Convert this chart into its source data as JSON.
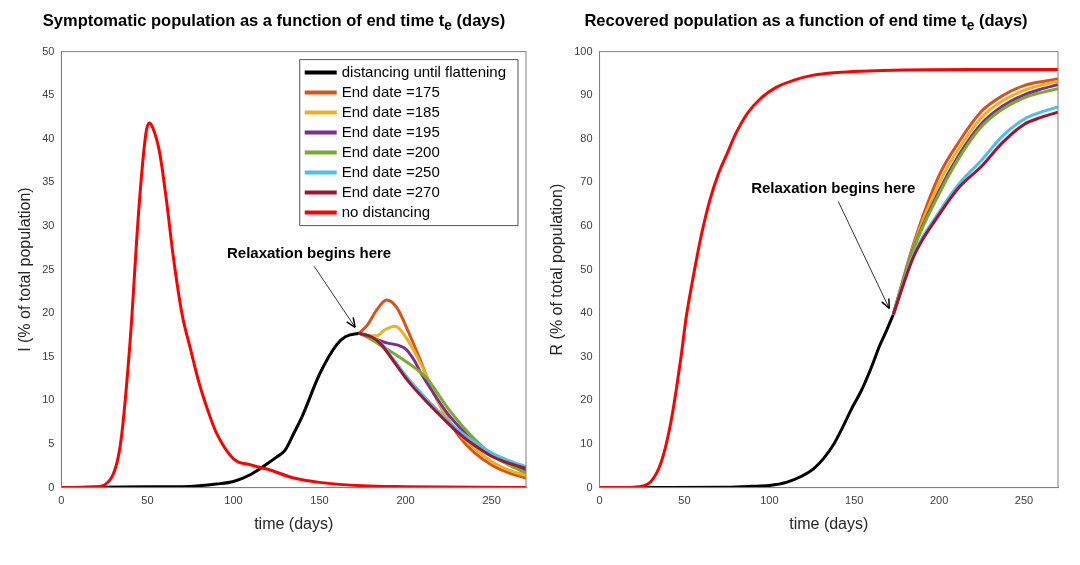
{
  "chart_data": [
    {
      "type": "line",
      "title": "Symptomatic population as a function of end time t$_{e}$ (days)",
      "xlabel": "time (days)",
      "ylabel": "I (% of total population)",
      "xlim": [
        0,
        270
      ],
      "xticks": [
        0,
        50,
        100,
        150,
        200,
        250
      ],
      "ylim": [
        0,
        50
      ],
      "yticks": [
        0,
        5,
        10,
        15,
        20,
        25,
        30,
        35,
        40,
        45,
        50
      ],
      "legend": "top right",
      "annotations": [
        {
          "text": "Relaxation begins here",
          "x": 173,
          "y": 17.7
        }
      ],
      "series": [
        {
          "name": "distancing until flattening",
          "color": "#000000",
          "x": [
            0,
            50,
            70,
            80,
            90,
            100,
            110,
            120,
            125,
            130,
            135,
            140,
            150,
            160,
            165,
            173
          ],
          "values": [
            0,
            0.1,
            0.1,
            0.2,
            0.4,
            0.7,
            1.5,
            2.8,
            3.5,
            4.3,
            6.2,
            8.2,
            13,
            16.4,
            17.3,
            17.7
          ]
        },
        {
          "name": "End date =175",
          "color": "#d95319",
          "x": [
            173,
            178,
            183,
            189,
            195,
            202,
            209,
            215,
            223,
            231,
            240,
            250,
            260,
            270
          ],
          "values": [
            17.7,
            18.7,
            20.3,
            21.5,
            20.6,
            17.7,
            14.4,
            11.4,
            8.4,
            5.9,
            4,
            2.6,
            1.7,
            1.1
          ]
        },
        {
          "name": "End date =185",
          "color": "#edb120",
          "x": [
            173,
            178,
            183,
            188,
            194,
            200,
            207,
            215,
            222,
            231,
            240,
            250,
            260,
            270
          ],
          "values": [
            17.7,
            17.4,
            17.4,
            18.1,
            18.5,
            17.3,
            14.9,
            11.6,
            8.6,
            6.2,
            4.5,
            3,
            2,
            1.4
          ]
        },
        {
          "name": "End date =195",
          "color": "#7e2f8e",
          "x": [
            173,
            180,
            189,
            196,
            200,
            205,
            209,
            216,
            224,
            232,
            240,
            250,
            260,
            270
          ],
          "values": [
            17.7,
            17.2,
            16.6,
            16.3,
            15.9,
            14.6,
            13.1,
            10.9,
            8.6,
            6.8,
            5.3,
            3.8,
            2.7,
            2
          ]
        },
        {
          "name": "End date =200",
          "color": "#77ac30",
          "x": [
            173,
            180,
            189,
            200,
            207,
            213,
            219,
            225,
            232,
            240,
            250,
            260,
            270
          ],
          "values": [
            17.7,
            17,
            15.9,
            14.5,
            13.5,
            12.4,
            10.7,
            9,
            7.3,
            5.6,
            3.8,
            2.6,
            1.7
          ]
        },
        {
          "name": "End date =250",
          "color": "#4dbeee",
          "x": [
            173,
            180,
            185,
            193,
            202,
            212,
            222,
            230,
            239,
            250,
            260,
            270
          ],
          "values": [
            17.7,
            17.3,
            16.7,
            14.7,
            12.4,
            10.2,
            8.2,
            6.7,
            5.4,
            4,
            3.1,
            2.4
          ]
        },
        {
          "name": "End date =270",
          "color": "#a2142f",
          "x": [
            173,
            180,
            185,
            193,
            202,
            212,
            222,
            230,
            239,
            250,
            260,
            270
          ],
          "values": [
            17.7,
            17.3,
            16.6,
            14.5,
            12.1,
            9.9,
            7.9,
            6.4,
            5,
            3.6,
            2.8,
            2.2
          ]
        },
        {
          "name": "no distancing",
          "color": "#ff0000",
          "x": [
            0,
            20,
            25,
            30,
            33,
            35,
            40,
            45,
            49,
            51,
            53,
            57,
            61,
            65,
            70,
            75,
            80,
            85,
            90,
            100,
            110,
            120,
            135,
            150,
            175,
            200,
            270
          ],
          "values": [
            0,
            0.1,
            0.3,
            1.5,
            3.5,
            6,
            17,
            32,
            40.5,
            41.8,
            41.3,
            38.5,
            33,
            26.5,
            20,
            15.9,
            12,
            8.9,
            6.3,
            3.3,
            2.6,
            2.1,
            1.1,
            0.6,
            0.2,
            0.1,
            0
          ]
        }
      ]
    },
    {
      "type": "line",
      "title": "Recovered population as a function of end time t$_{e}$ (days)",
      "xlabel": "time (days)",
      "ylabel": "R (% of total population)",
      "xlim": [
        0,
        270
      ],
      "xticks": [
        0,
        50,
        100,
        150,
        200,
        250
      ],
      "ylim": [
        0,
        100
      ],
      "yticks": [
        0,
        10,
        20,
        30,
        40,
        50,
        60,
        70,
        80,
        90,
        100
      ],
      "annotations": [
        {
          "text": "Relaxation begins here",
          "x": 173,
          "y": 39.7
        }
      ],
      "series": [
        {
          "color": "#000000",
          "x": [
            0,
            75,
            90,
            100,
            110,
            119,
            126,
            132,
            138,
            143,
            149,
            154,
            160,
            165,
            169,
            173
          ],
          "values": [
            0,
            0.1,
            0.3,
            0.5,
            1.2,
            2.6,
            4.3,
            6.7,
            10,
            13.7,
            18.5,
            22.1,
            27.5,
            32.6,
            36,
            39.7
          ]
        },
        {
          "color": "#d95319",
          "x": [
            173,
            185,
            200,
            212,
            225,
            237,
            250,
            260,
            270
          ],
          "values": [
            39.7,
            56,
            71.6,
            79.5,
            86.3,
            89.8,
            92.2,
            93.1,
            93.7
          ]
        },
        {
          "color": "#edb120",
          "x": [
            173,
            185,
            200,
            212,
            225,
            237,
            250,
            260,
            270
          ],
          "values": [
            39.7,
            55.5,
            69.9,
            78,
            84.9,
            88.6,
            91.1,
            92.3,
            93.2
          ]
        },
        {
          "color": "#7e2f8e",
          "x": [
            173,
            185,
            200,
            212,
            225,
            237,
            250,
            260,
            270
          ],
          "values": [
            39.7,
            55,
            68.1,
            76.5,
            83.5,
            87.4,
            90.1,
            91.4,
            92.4
          ]
        },
        {
          "color": "#77ac30",
          "x": [
            173,
            185,
            200,
            212,
            225,
            237,
            250,
            260,
            270
          ],
          "values": [
            39.7,
            54.8,
            67.4,
            75.8,
            82.8,
            86.7,
            89.4,
            90.6,
            91.5
          ]
        },
        {
          "color": "#4dbeee",
          "x": [
            173,
            185,
            200,
            212,
            225,
            237,
            250,
            260,
            270
          ],
          "values": [
            39.7,
            53.5,
            63.2,
            69.8,
            75.1,
            80.5,
            84.5,
            86.1,
            87.3
          ]
        },
        {
          "color": "#a2142f",
          "x": [
            173,
            185,
            200,
            212,
            225,
            237,
            250,
            260,
            270
          ],
          "values": [
            39.7,
            53,
            62.6,
            69,
            73.7,
            79,
            83.3,
            84.9,
            86.1
          ]
        },
        {
          "color": "#ff0000",
          "x": [
            0,
            20,
            25,
            30,
            35,
            38,
            42,
            45,
            48,
            51,
            55,
            60,
            65,
            70,
            75,
            80,
            87,
            95,
            104,
            115,
            126,
            140,
            154,
            180,
            220,
            270
          ],
          "values": [
            0,
            0.1,
            0.3,
            1.3,
            4.5,
            8,
            15,
            22,
            30,
            39,
            48,
            58,
            66,
            72,
            76.5,
            81,
            85.8,
            89.3,
            91.8,
            93.5,
            94.6,
            95.2,
            95.5,
            95.8,
            95.9,
            95.9
          ]
        }
      ]
    }
  ]
}
